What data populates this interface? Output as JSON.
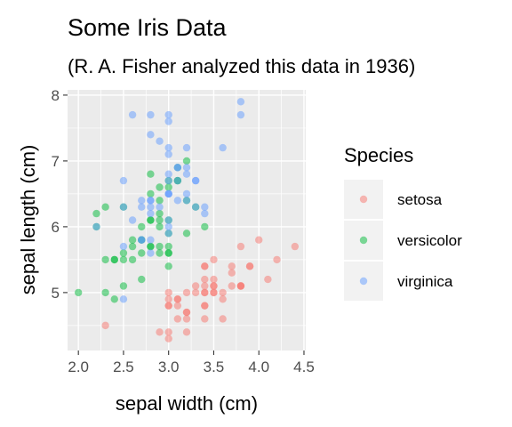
{
  "chart_data": {
    "type": "scatter",
    "title": "Some Iris Data",
    "subtitle": "(R. A. Fisher analyzed this data in 1936)",
    "xlabel": "sepal width (cm)",
    "ylabel": "sepal length (cm)",
    "xlim": [
      1.88,
      4.52
    ],
    "ylim": [
      4.12,
      8.08
    ],
    "xticks": [
      2.0,
      2.5,
      3.0,
      3.5,
      4.0,
      4.5
    ],
    "xtick_labels": [
      "2.0",
      "2.5",
      "3.0",
      "3.5",
      "4.0",
      "4.5"
    ],
    "yticks": [
      5,
      6,
      7,
      8
    ],
    "ytick_labels": [
      "5",
      "6",
      "7",
      "8"
    ],
    "grid": true,
    "legend": {
      "title": "Species",
      "position": "right"
    },
    "series": [
      {
        "name": "setosa",
        "color": "#F8766D",
        "points": [
          [
            3.5,
            5.1
          ],
          [
            3.0,
            4.9
          ],
          [
            3.2,
            4.7
          ],
          [
            3.1,
            4.6
          ],
          [
            3.6,
            5.0
          ],
          [
            3.9,
            5.4
          ],
          [
            3.4,
            4.6
          ],
          [
            3.4,
            5.0
          ],
          [
            2.9,
            4.4
          ],
          [
            3.1,
            4.9
          ],
          [
            3.7,
            5.4
          ],
          [
            3.4,
            4.8
          ],
          [
            3.0,
            4.8
          ],
          [
            3.0,
            4.3
          ],
          [
            4.0,
            5.8
          ],
          [
            4.4,
            5.7
          ],
          [
            3.9,
            5.4
          ],
          [
            3.5,
            5.1
          ],
          [
            3.8,
            5.7
          ],
          [
            3.8,
            5.1
          ],
          [
            3.4,
            5.4
          ],
          [
            3.7,
            5.1
          ],
          [
            3.6,
            4.6
          ],
          [
            3.3,
            5.1
          ],
          [
            3.4,
            4.8
          ],
          [
            3.0,
            5.0
          ],
          [
            3.4,
            5.0
          ],
          [
            3.5,
            5.2
          ],
          [
            3.4,
            5.2
          ],
          [
            3.2,
            4.7
          ],
          [
            3.1,
            4.8
          ],
          [
            3.4,
            5.4
          ],
          [
            4.1,
            5.2
          ],
          [
            4.2,
            5.5
          ],
          [
            3.1,
            4.9
          ],
          [
            3.2,
            5.0
          ],
          [
            3.5,
            5.5
          ],
          [
            3.6,
            4.9
          ],
          [
            3.0,
            4.4
          ],
          [
            3.4,
            5.1
          ],
          [
            3.5,
            5.0
          ],
          [
            2.3,
            4.5
          ],
          [
            3.2,
            4.4
          ],
          [
            3.5,
            5.0
          ],
          [
            3.8,
            5.1
          ],
          [
            3.0,
            4.8
          ],
          [
            3.8,
            5.1
          ],
          [
            3.2,
            4.6
          ],
          [
            3.7,
            5.3
          ],
          [
            3.3,
            5.0
          ]
        ]
      },
      {
        "name": "versicolor",
        "color": "#00BA38",
        "points": [
          [
            3.2,
            7.0
          ],
          [
            3.2,
            6.4
          ],
          [
            3.1,
            6.9
          ],
          [
            2.3,
            5.5
          ],
          [
            2.8,
            6.5
          ],
          [
            2.8,
            5.7
          ],
          [
            3.3,
            6.3
          ],
          [
            2.4,
            4.9
          ],
          [
            2.9,
            6.6
          ],
          [
            2.7,
            5.2
          ],
          [
            2.0,
            5.0
          ],
          [
            3.0,
            5.9
          ],
          [
            2.2,
            6.0
          ],
          [
            2.9,
            6.1
          ],
          [
            2.9,
            5.6
          ],
          [
            3.1,
            6.7
          ],
          [
            3.0,
            5.6
          ],
          [
            2.7,
            5.8
          ],
          [
            2.2,
            6.2
          ],
          [
            2.5,
            5.6
          ],
          [
            3.2,
            5.9
          ],
          [
            2.8,
            6.1
          ],
          [
            2.5,
            6.3
          ],
          [
            2.8,
            6.1
          ],
          [
            2.9,
            6.4
          ],
          [
            3.0,
            6.6
          ],
          [
            2.8,
            6.8
          ],
          [
            3.0,
            6.7
          ],
          [
            2.9,
            6.0
          ],
          [
            2.6,
            5.7
          ],
          [
            2.4,
            5.5
          ],
          [
            2.4,
            5.5
          ],
          [
            2.7,
            5.8
          ],
          [
            2.7,
            6.0
          ],
          [
            3.0,
            5.4
          ],
          [
            3.4,
            6.0
          ],
          [
            3.1,
            6.7
          ],
          [
            2.3,
            6.3
          ],
          [
            3.0,
            5.6
          ],
          [
            2.5,
            5.5
          ],
          [
            2.6,
            5.5
          ],
          [
            3.0,
            6.1
          ],
          [
            2.6,
            5.8
          ],
          [
            2.3,
            5.0
          ],
          [
            2.7,
            5.6
          ],
          [
            3.0,
            5.7
          ],
          [
            2.9,
            5.7
          ],
          [
            2.9,
            6.2
          ],
          [
            2.5,
            5.1
          ],
          [
            2.8,
            5.7
          ]
        ]
      },
      {
        "name": "virginica",
        "color": "#619CFF",
        "points": [
          [
            3.3,
            6.3
          ],
          [
            2.7,
            5.8
          ],
          [
            3.0,
            7.1
          ],
          [
            2.9,
            6.3
          ],
          [
            3.0,
            6.5
          ],
          [
            3.0,
            7.6
          ],
          [
            2.5,
            4.9
          ],
          [
            2.9,
            7.3
          ],
          [
            2.5,
            6.7
          ],
          [
            3.6,
            7.2
          ],
          [
            3.2,
            6.5
          ],
          [
            2.7,
            6.4
          ],
          [
            3.0,
            6.8
          ],
          [
            2.5,
            5.7
          ],
          [
            2.8,
            5.8
          ],
          [
            3.2,
            6.4
          ],
          [
            3.0,
            6.5
          ],
          [
            3.8,
            7.7
          ],
          [
            2.6,
            7.7
          ],
          [
            2.2,
            6.0
          ],
          [
            3.2,
            6.9
          ],
          [
            2.8,
            5.6
          ],
          [
            2.8,
            7.7
          ],
          [
            2.7,
            6.3
          ],
          [
            3.3,
            6.7
          ],
          [
            3.2,
            7.2
          ],
          [
            2.8,
            6.2
          ],
          [
            3.0,
            6.1
          ],
          [
            2.8,
            6.4
          ],
          [
            3.0,
            7.2
          ],
          [
            2.8,
            7.4
          ],
          [
            3.8,
            7.9
          ],
          [
            2.8,
            6.4
          ],
          [
            2.8,
            6.3
          ],
          [
            2.6,
            6.1
          ],
          [
            3.0,
            7.7
          ],
          [
            3.4,
            6.3
          ],
          [
            3.1,
            6.4
          ],
          [
            3.0,
            6.0
          ],
          [
            3.1,
            6.9
          ],
          [
            3.1,
            6.7
          ],
          [
            3.1,
            6.9
          ],
          [
            2.7,
            5.8
          ],
          [
            3.2,
            6.8
          ],
          [
            3.3,
            6.7
          ],
          [
            3.0,
            6.7
          ],
          [
            2.5,
            6.3
          ],
          [
            3.0,
            6.5
          ],
          [
            3.4,
            6.2
          ],
          [
            3.0,
            5.9
          ]
        ]
      }
    ]
  }
}
